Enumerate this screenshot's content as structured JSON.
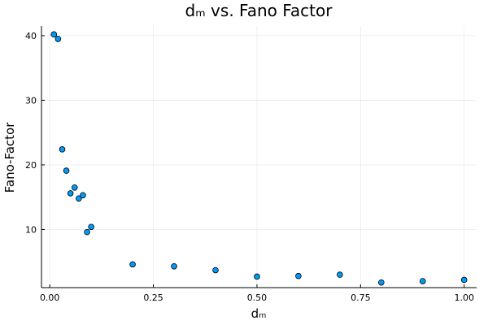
{
  "chart_data": {
    "type": "scatter",
    "title": "dₘ vs. Fano Factor",
    "xlabel": "dₘ",
    "ylabel": "Fano-Factor",
    "xlim": [
      -0.02,
      1.03
    ],
    "ylim": [
      1,
      41.5
    ],
    "x_ticks": [
      0,
      0.25,
      0.5,
      0.75,
      1.0
    ],
    "x_tick_labels": [
      "0.00",
      "0.25",
      "0.50",
      "0.75",
      "1.00"
    ],
    "y_ticks": [
      10,
      20,
      30,
      40
    ],
    "y_tick_labels": [
      "10",
      "20",
      "30",
      "40"
    ],
    "grid": true,
    "legend": "none",
    "marker_color": "#009af9",
    "series": [
      {
        "x": [
          0.01,
          0.02,
          0.03,
          0.04,
          0.05,
          0.06,
          0.07,
          0.08,
          0.09,
          0.1,
          0.2,
          0.3,
          0.4,
          0.5,
          0.6,
          0.7,
          0.8,
          0.9,
          1.0
        ],
        "y": [
          40.2,
          39.5,
          22.4,
          19.1,
          15.6,
          16.5,
          14.8,
          15.3,
          9.6,
          10.4,
          4.6,
          4.3,
          3.7,
          2.7,
          2.8,
          3.0,
          1.8,
          2.0,
          2.2
        ]
      }
    ]
  }
}
